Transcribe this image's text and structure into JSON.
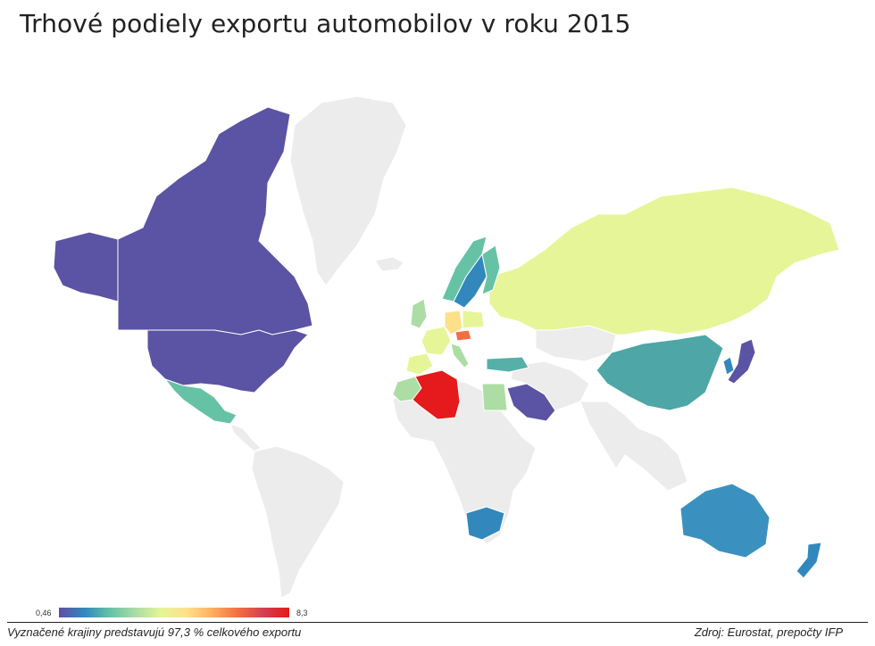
{
  "title": "Trhové podiely exportu automobilov v roku 2015",
  "legend": {
    "min_label": "0,46",
    "max_label": "8,3"
  },
  "footer": {
    "note": "Vyznačené krajiny predstavujú 97,3 % celkového exportu",
    "source": "Zdroj: Eurostat, prepočty IFP"
  },
  "colors": {
    "no_data": "#ececec",
    "scale_low": "#5e4fa2",
    "scale_high": "#e41a1c"
  },
  "map_regions": [
    {
      "name": "greenland",
      "color": "#ececec"
    },
    {
      "name": "canada",
      "color": "#5b53a3"
    },
    {
      "name": "usa",
      "color": "#5b53a3"
    },
    {
      "name": "alaska",
      "color": "#5b53a3"
    },
    {
      "name": "mexico",
      "color": "#66c2a5"
    },
    {
      "name": "central-america",
      "color": "#ececec"
    },
    {
      "name": "south-america",
      "color": "#ececec"
    },
    {
      "name": "russia",
      "color": "#e6f598"
    },
    {
      "name": "china",
      "color": "#4ea6a6"
    },
    {
      "name": "japan",
      "color": "#5b53a3"
    },
    {
      "name": "korea",
      "color": "#3288bd"
    },
    {
      "name": "australia",
      "color": "#3a91bf"
    },
    {
      "name": "new-zealand",
      "color": "#3288bd"
    },
    {
      "name": "south-africa",
      "color": "#3288bd"
    },
    {
      "name": "algeria",
      "color": "#e41a1c"
    },
    {
      "name": "morocco",
      "color": "#abdda4"
    },
    {
      "name": "egypt",
      "color": "#abdda4"
    },
    {
      "name": "saudi-arabia",
      "color": "#5b53a3"
    },
    {
      "name": "turkey",
      "color": "#56b0a8"
    },
    {
      "name": "norway",
      "color": "#66c2a5"
    },
    {
      "name": "sweden",
      "color": "#3288bd"
    },
    {
      "name": "finland",
      "color": "#66c2a5"
    },
    {
      "name": "uk",
      "color": "#abdda4"
    },
    {
      "name": "france",
      "color": "#e6f598"
    },
    {
      "name": "spain",
      "color": "#e6f598"
    },
    {
      "name": "germany",
      "color": "#fee08b"
    },
    {
      "name": "poland",
      "color": "#e6f598"
    },
    {
      "name": "czechia",
      "color": "#f46d43"
    },
    {
      "name": "italy",
      "color": "#abdda4"
    },
    {
      "name": "africa",
      "color": "#ececec"
    },
    {
      "name": "middle-east",
      "color": "#ececec"
    },
    {
      "name": "india-se-asia",
      "color": "#ececec"
    },
    {
      "name": "kazakhstan",
      "color": "#ececec"
    },
    {
      "name": "iceland",
      "color": "#ececec"
    }
  ]
}
